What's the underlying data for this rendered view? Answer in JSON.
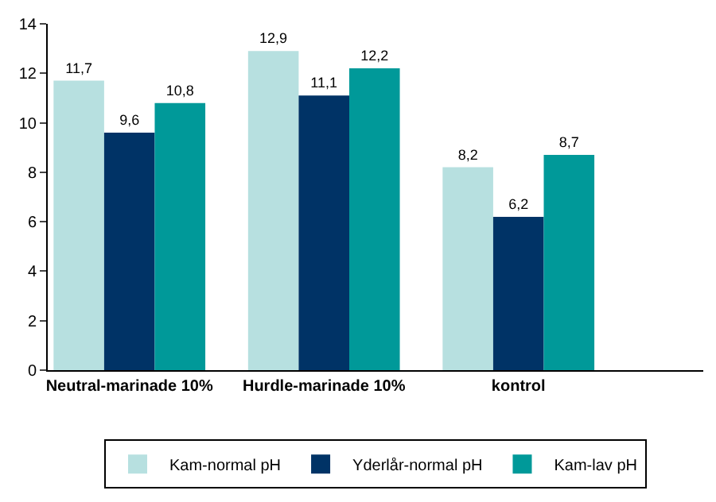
{
  "chart_data": {
    "type": "bar",
    "categories": [
      "Neutral-marinade 10%",
      "Hurdle-marinade 10%",
      "kontrol"
    ],
    "series": [
      {
        "name": "Kam-normal pH",
        "color": "#b7e0e0",
        "values": [
          11.7,
          12.9,
          8.2
        ],
        "value_labels": [
          "11,7",
          "12,9",
          "8,2"
        ]
      },
      {
        "name": "Yderlår-normal pH",
        "color": "#003366",
        "values": [
          9.6,
          11.1,
          6.2
        ],
        "value_labels": [
          "9,6",
          "11,1",
          "6,2"
        ]
      },
      {
        "name": "Kam-lav pH",
        "color": "#009999",
        "values": [
          10.8,
          12.2,
          8.7
        ],
        "value_labels": [
          "10,8",
          "12,2",
          "8,7"
        ]
      }
    ],
    "ylim": [
      0,
      14
    ],
    "yticks": [
      0,
      2,
      4,
      6,
      8,
      10,
      12,
      14
    ],
    "grid": false,
    "legend": "bottom"
  }
}
